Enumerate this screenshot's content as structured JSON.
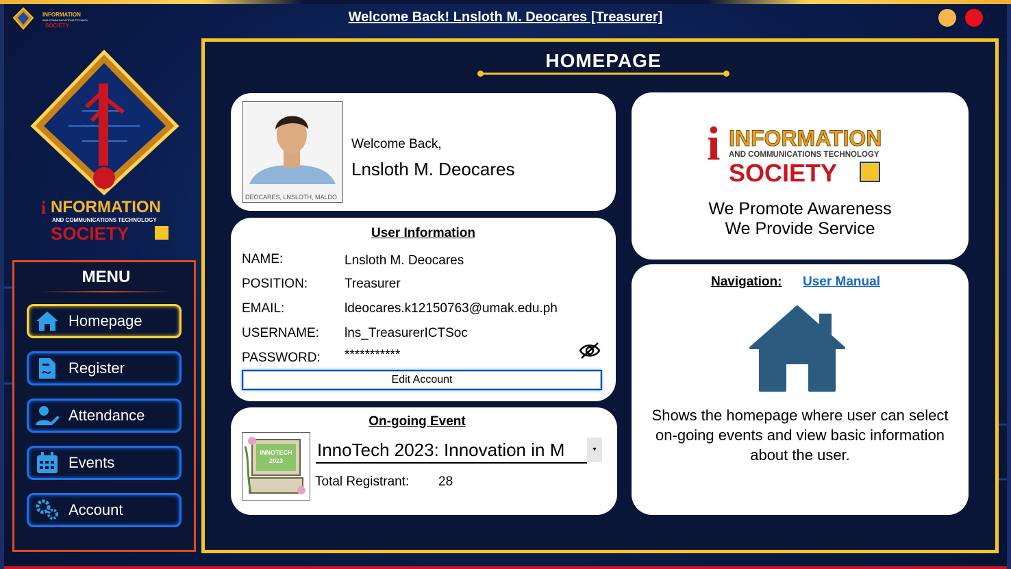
{
  "window": {
    "title": "Welcome Back! Lnsloth M. Deocares [Treasurer]"
  },
  "brand": {
    "logo_line1": "INFORMATION",
    "logo_line2": "AND COMMUNICATIONS TECHNOLOGY",
    "logo_line3": "SOCIETY"
  },
  "sidebar": {
    "menu_title": "MENU",
    "items": [
      {
        "label": "Homepage",
        "icon": "home-icon",
        "active": true
      },
      {
        "label": "Register",
        "icon": "document-icon",
        "active": false
      },
      {
        "label": "Attendance",
        "icon": "user-edit-icon",
        "active": false
      },
      {
        "label": "Events",
        "icon": "calendar-icon",
        "active": false
      },
      {
        "label": "Account",
        "icon": "gears-icon",
        "active": false
      }
    ]
  },
  "page": {
    "title": "HOMEPAGE"
  },
  "welcome": {
    "greeting": "Welcome Back,",
    "name": "Lnsloth M. Deocares",
    "photo_caption": "DEOCARES, LNSLOTH, MALDO"
  },
  "user_info": {
    "title": "User Information",
    "fields": [
      {
        "label": "NAME:",
        "value": "Lnsloth M. Deocares"
      },
      {
        "label": "POSITION:",
        "value": "Treasurer"
      },
      {
        "label": "EMAIL:",
        "value": "ldeocares.k12150763@umak.edu.ph"
      },
      {
        "label": "USERNAME:",
        "value": "lns_TreasurerICTSoc"
      },
      {
        "label": "PASSWORD:",
        "value": "***********"
      }
    ],
    "edit_button": "Edit Account"
  },
  "event": {
    "title": "On-going Event",
    "selected": "InnoTech 2023: Innovation in M",
    "thumb_text": "INNOTECH 2023",
    "registrant_label": "Total Registrant:",
    "registrant_count": "28"
  },
  "brand_card": {
    "tagline1": "We Promote Awareness",
    "tagline2": "We Provide Service"
  },
  "navigation": {
    "label": "Navigation:",
    "link": "User Manual",
    "description": "Shows the homepage where user can select on-going events and view basic information about the user."
  },
  "colors": {
    "accent_gold": "#f5c428",
    "accent_blue": "#1d6fe8",
    "brand_red": "#c8171e",
    "home_icon": "#2c5b80"
  }
}
